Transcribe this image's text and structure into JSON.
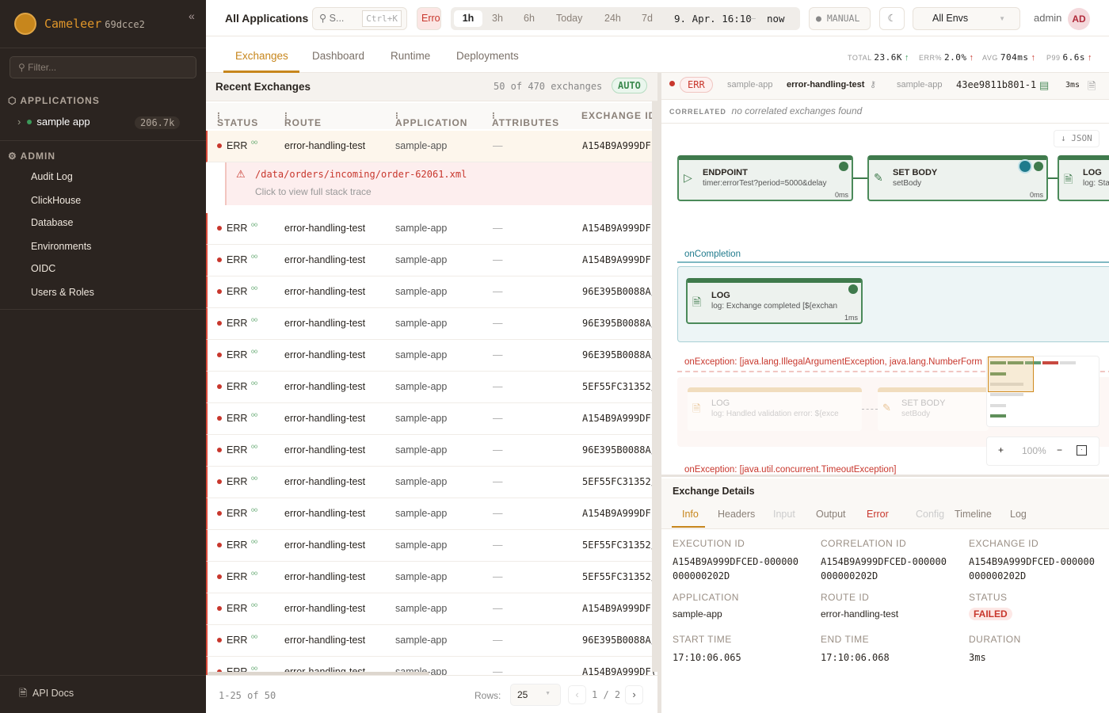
{
  "sidebar": {
    "brand": "Cameleer",
    "version": "69dcce2",
    "filter_placeholder": "Filter...",
    "applications_label": "APPLICATIONS",
    "app": {
      "name": "sample app",
      "count": "206.7k"
    },
    "admin_label": "ADMIN",
    "admin_items": [
      "Audit Log",
      "ClickHouse",
      "Database",
      "Environments",
      "OIDC",
      "Users & Roles"
    ],
    "api_docs": "API Docs"
  },
  "topbar": {
    "scope": "All Applications",
    "search_placeholder": "S...",
    "search_shortcut": "Ctrl+K",
    "error_filter": "Erro",
    "time_ranges": [
      "1h",
      "3h",
      "6h",
      "Today",
      "24h",
      "7d"
    ],
    "active_range": "1h",
    "range_start": "9. Apr. 16:10",
    "range_sep": "–",
    "range_end": "now",
    "refresh_mode": "MANUAL",
    "env": "All Envs",
    "user": "admin",
    "avatar": "AD"
  },
  "tabs": [
    "Exchanges",
    "Dashboard",
    "Runtime",
    "Deployments"
  ],
  "kpis": [
    {
      "label": "TOTAL",
      "value": "23.6K",
      "arrow": "↑",
      "color": "#3c9a5a"
    },
    {
      "label": "ERR%",
      "value": "2.0%",
      "arrow": "↑",
      "color": "#c8372d"
    },
    {
      "label": "AVG",
      "value": "704ms",
      "arrow": "↑",
      "color": "#c8372d"
    },
    {
      "label": "P99",
      "value": "6.6s",
      "arrow": "↑",
      "color": "#c8372d"
    }
  ],
  "exchanges": {
    "title": "Recent Exchanges",
    "summary": "50 of 470 exchanges",
    "auto": "AUTO",
    "columns": [
      "STATUS",
      "ROUTE",
      "APPLICATION",
      "ATTRIBUTES",
      "EXCHANGE ID"
    ],
    "error": {
      "path": "/data/orders/incoming/order-62061.xml",
      "hint": "Click to view full stack trace"
    },
    "rows": [
      {
        "status": "ERR",
        "route": "error-handling-test",
        "app": "sample-app",
        "attrs": "—",
        "id": "A154B9A999DF("
      },
      {
        "status": "ERR",
        "route": "error-handling-test",
        "app": "sample-app",
        "attrs": "—",
        "id": "A154B9A999DF("
      },
      {
        "status": "ERR",
        "route": "error-handling-test",
        "app": "sample-app",
        "attrs": "—",
        "id": "A154B9A999DF("
      },
      {
        "status": "ERR",
        "route": "error-handling-test",
        "app": "sample-app",
        "attrs": "—",
        "id": "96E395B0088A/"
      },
      {
        "status": "ERR",
        "route": "error-handling-test",
        "app": "sample-app",
        "attrs": "—",
        "id": "96E395B0088A/"
      },
      {
        "status": "ERR",
        "route": "error-handling-test",
        "app": "sample-app",
        "attrs": "—",
        "id": "96E395B0088A/"
      },
      {
        "status": "ERR",
        "route": "error-handling-test",
        "app": "sample-app",
        "attrs": "—",
        "id": "5EF55FC31352/"
      },
      {
        "status": "ERR",
        "route": "error-handling-test",
        "app": "sample-app",
        "attrs": "—",
        "id": "A154B9A999DF("
      },
      {
        "status": "ERR",
        "route": "error-handling-test",
        "app": "sample-app",
        "attrs": "—",
        "id": "96E395B0088A/"
      },
      {
        "status": "ERR",
        "route": "error-handling-test",
        "app": "sample-app",
        "attrs": "—",
        "id": "5EF55FC31352/"
      },
      {
        "status": "ERR",
        "route": "error-handling-test",
        "app": "sample-app",
        "attrs": "—",
        "id": "A154B9A999DF("
      },
      {
        "status": "ERR",
        "route": "error-handling-test",
        "app": "sample-app",
        "attrs": "—",
        "id": "5EF55FC31352/"
      },
      {
        "status": "ERR",
        "route": "error-handling-test",
        "app": "sample-app",
        "attrs": "—",
        "id": "5EF55FC31352/"
      },
      {
        "status": "ERR",
        "route": "error-handling-test",
        "app": "sample-app",
        "attrs": "—",
        "id": "A154B9A999DF("
      },
      {
        "status": "ERR",
        "route": "error-handling-test",
        "app": "sample-app",
        "attrs": "—",
        "id": "96E395B0088A/"
      },
      {
        "status": "ERR",
        "route": "error-handling-test",
        "app": "sample-app",
        "attrs": "—",
        "id": "A154B9A999DF("
      }
    ],
    "range": "1-25 of 50",
    "rows_label": "Rows:",
    "rows_value": "25",
    "page": "1 / 2"
  },
  "detail": {
    "status": "ERR",
    "app": "sample-app",
    "route": "error-handling-test",
    "app2": "sample-app",
    "exchange": "43ee9811b801-1",
    "duration": "3ms",
    "correlated_label": "CORRELATED",
    "correlated_text": "no correlated exchanges found",
    "json_button": "↓ JSON",
    "nodes": [
      {
        "type": "ENDPOINT",
        "sub": "timer:errorTest?period=5000&delay",
        "dur": "0ms"
      },
      {
        "type": "SET BODY",
        "sub": "setBody",
        "dur": "0ms"
      },
      {
        "type": "LOG",
        "sub": "log: Sta",
        "dur": ""
      }
    ],
    "on_completion": {
      "label": "onCompletion",
      "node": {
        "type": "LOG",
        "sub": "log: Exchange completed [${exchan",
        "dur": "1ms"
      }
    },
    "on_exception1": {
      "label": "onException: [java.lang.IllegalArgumentException, java.lang.NumberForm",
      "nodes": [
        {
          "type": "LOG",
          "sub": "log: Handled validation error: ${exce"
        },
        {
          "type": "SET BODY",
          "sub": "setBody"
        }
      ]
    },
    "on_exception2": {
      "label": "onException: [java.util.concurrent.TimeoutException]"
    },
    "zoom": "100%"
  },
  "exchange_details": {
    "title": "Exchange Details",
    "tabs": [
      "Info",
      "Headers",
      "Input",
      "Output",
      "Error",
      "Config",
      "Timeline",
      "Log"
    ],
    "fields": [
      {
        "k": "EXECUTION ID",
        "v": "A154B9A999DFCED-000000 000000202D"
      },
      {
        "k": "CORRELATION ID",
        "v": "A154B9A999DFCED-000000 000000202D"
      },
      {
        "k": "EXCHANGE ID",
        "v": "A154B9A999DFCED-000000 000000202D"
      },
      {
        "k": "APPLICATION",
        "v": "sample-app"
      },
      {
        "k": "ROUTE ID",
        "v": "error-handling-test"
      },
      {
        "k": "STATUS",
        "v": "FAILED"
      },
      {
        "k": "START TIME",
        "v": "17:10:06.065"
      },
      {
        "k": "END TIME",
        "v": "17:10:06.068"
      },
      {
        "k": "DURATION",
        "v": "3ms"
      }
    ]
  },
  "colors": {
    "accent": "#c7861c",
    "error": "#c8372d",
    "success": "#3f7a4c",
    "sidebar": "#2b2420"
  }
}
